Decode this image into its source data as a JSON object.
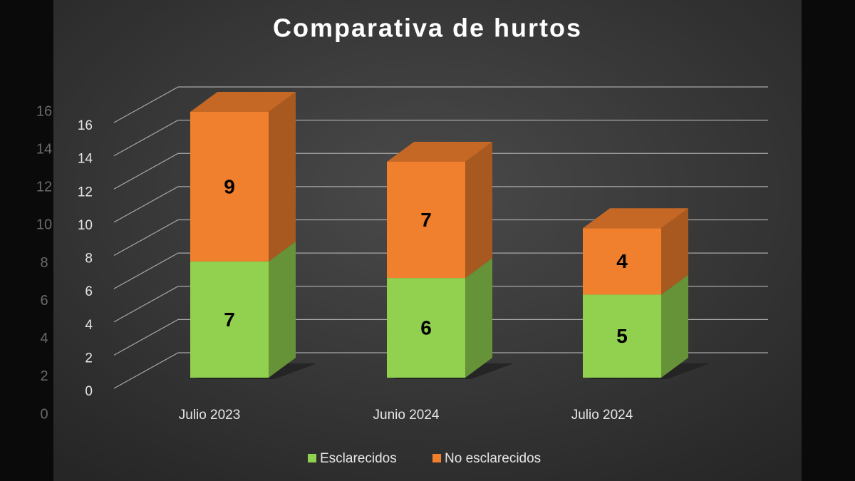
{
  "chart_data": {
    "type": "bar3d_stacked",
    "title": "Comparativa de hurtos",
    "categories": [
      "Julio 2023",
      "Junio 2024",
      "Julio 2024"
    ],
    "series": [
      {
        "name": "Esclarecidos",
        "color": "#92d050",
        "values": [
          7,
          6,
          5
        ]
      },
      {
        "name": "No esclarecidos",
        "color": "#f07f2e",
        "values": [
          9,
          7,
          4
        ]
      }
    ],
    "ylim": [
      0,
      16
    ],
    "yticks": [
      0,
      2,
      4,
      6,
      8,
      10,
      12,
      14,
      16
    ],
    "grid": true,
    "legend": "bottom"
  }
}
